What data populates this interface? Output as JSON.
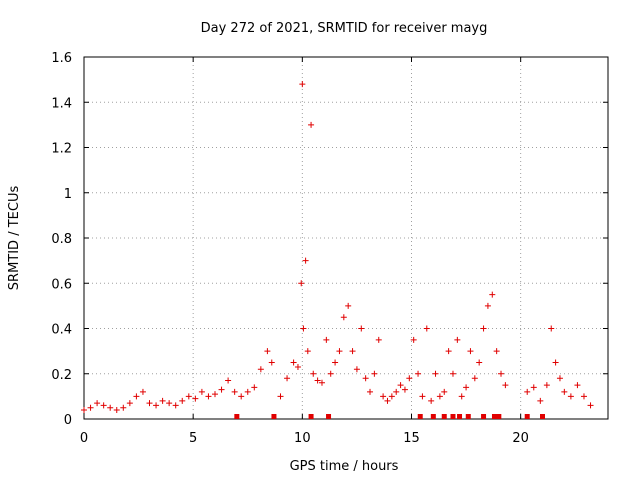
{
  "chart_data": {
    "type": "scatter",
    "title": "Day 272 of 2021, SRMTID for receiver mayg",
    "xlabel": "GPS time / hours",
    "ylabel": "SRMTID / TECUs",
    "xlim": [
      0,
      24
    ],
    "ylim": [
      0,
      1.6
    ],
    "xticks": [
      0,
      5,
      10,
      15,
      20
    ],
    "yticks": [
      0,
      0.2,
      0.4,
      0.6,
      0.8,
      1,
      1.2,
      1.4,
      1.6
    ],
    "xtick_labels": [
      "0",
      "5",
      "10",
      "15",
      "20"
    ],
    "ytick_labels": [
      "0",
      "0.2",
      "0.4",
      "0.6",
      "0.8",
      "1",
      "1.2",
      "1.4",
      "1.6"
    ],
    "grid": true,
    "marker": "+",
    "color": "#e00000",
    "series": [
      {
        "name": "SRMTID",
        "x": [
          0.0,
          0.3,
          0.6,
          0.9,
          1.2,
          1.5,
          1.8,
          2.1,
          2.4,
          2.7,
          3.0,
          3.3,
          3.6,
          3.9,
          4.2,
          4.5,
          4.8,
          5.1,
          5.4,
          5.7,
          6.0,
          6.3,
          6.6,
          6.9,
          7.2,
          7.5,
          7.8,
          8.1,
          8.4,
          8.6,
          9.0,
          9.3,
          9.6,
          9.8,
          9.95,
          10.0,
          10.05,
          10.15,
          10.25,
          10.4,
          10.5,
          10.7,
          10.9,
          11.1,
          11.3,
          11.5,
          11.7,
          11.9,
          12.1,
          12.3,
          12.5,
          12.7,
          12.9,
          13.1,
          13.3,
          13.5,
          13.7,
          13.9,
          14.1,
          14.3,
          14.5,
          14.7,
          14.9,
          15.1,
          15.3,
          15.5,
          15.7,
          15.9,
          16.1,
          16.3,
          16.5,
          16.7,
          16.9,
          17.1,
          17.3,
          17.5,
          17.7,
          17.9,
          18.1,
          18.3,
          18.5,
          18.7,
          18.9,
          19.1,
          19.3,
          20.3,
          20.6,
          20.9,
          21.2,
          21.4,
          21.6,
          21.8,
          22.0,
          22.3,
          22.6,
          22.9,
          23.2
        ],
        "y": [
          0.04,
          0.05,
          0.07,
          0.06,
          0.05,
          0.04,
          0.05,
          0.07,
          0.1,
          0.12,
          0.07,
          0.06,
          0.08,
          0.07,
          0.06,
          0.08,
          0.1,
          0.09,
          0.12,
          0.1,
          0.11,
          0.13,
          0.17,
          0.12,
          0.1,
          0.12,
          0.14,
          0.22,
          0.3,
          0.25,
          0.1,
          0.18,
          0.25,
          0.23,
          0.6,
          1.48,
          0.4,
          0.7,
          0.3,
          1.3,
          0.2,
          0.17,
          0.16,
          0.35,
          0.2,
          0.25,
          0.3,
          0.45,
          0.5,
          0.3,
          0.22,
          0.4,
          0.18,
          0.12,
          0.2,
          0.35,
          0.1,
          0.08,
          0.1,
          0.12,
          0.15,
          0.13,
          0.18,
          0.35,
          0.2,
          0.1,
          0.4,
          0.08,
          0.2,
          0.1,
          0.12,
          0.3,
          0.2,
          0.35,
          0.1,
          0.14,
          0.3,
          0.18,
          0.25,
          0.4,
          0.5,
          0.55,
          0.3,
          0.2,
          0.15,
          0.12,
          0.14,
          0.08,
          0.15,
          0.4,
          0.25,
          0.18,
          0.12,
          0.1,
          0.15,
          0.1,
          0.06
        ]
      }
    ],
    "gap_markers_x": [
      7.0,
      8.7,
      10.4,
      11.2,
      15.4,
      16.0,
      16.5,
      16.9,
      17.2,
      17.6,
      18.3,
      18.8,
      19.0,
      20.3,
      21.0
    ]
  }
}
